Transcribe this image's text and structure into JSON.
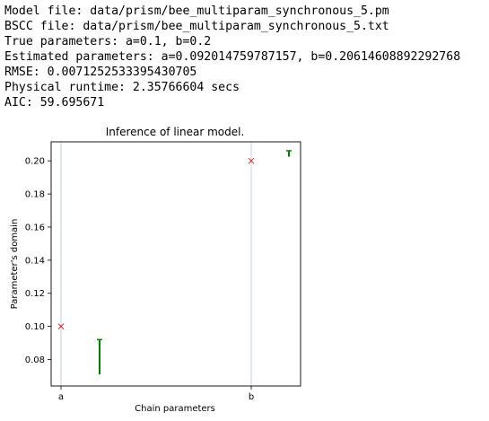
{
  "log_lines": [
    "Model file: data/prism/bee_multiparam_synchronous_5.pm",
    "BSCC file: data/prism/bee_multiparam_synchronous_5.txt",
    "True parameters: a=0.1, b=0.2",
    "Estimated parameters: a=0.092014759787157, b=0.20614608892292768",
    "RMSE: 0.0071252533395430705",
    "Physical runtime: 2.35766604 secs",
    "AIC: 59.695671"
  ],
  "chart_data": {
    "type": "scatter",
    "title": "Inference of linear model.",
    "xlabel": "Chain parameters",
    "ylabel": "Parameter's domain",
    "categories": [
      "a",
      "b"
    ],
    "ylim": [
      0.064,
      0.2115
    ],
    "yticks": [
      0.08,
      0.1,
      0.12,
      0.14,
      0.16,
      0.18,
      0.2
    ],
    "ytick_labels": [
      "0.08",
      "0.10",
      "0.12",
      "0.14",
      "0.16",
      "0.18",
      "0.20"
    ],
    "true_values": {
      "a": 0.1,
      "b": 0.2
    },
    "estimated_intervals": [
      {
        "param": "a",
        "low": 0.071,
        "high": 0.092
      },
      {
        "param": "b",
        "low": 0.2025,
        "high": 0.2061
      }
    ],
    "grid": "vertical lines at category ticks",
    "colors": {
      "true_marker": "#d62728",
      "estimate": "#008000",
      "gridline": "#b0c4de",
      "frame": "#000000"
    }
  }
}
